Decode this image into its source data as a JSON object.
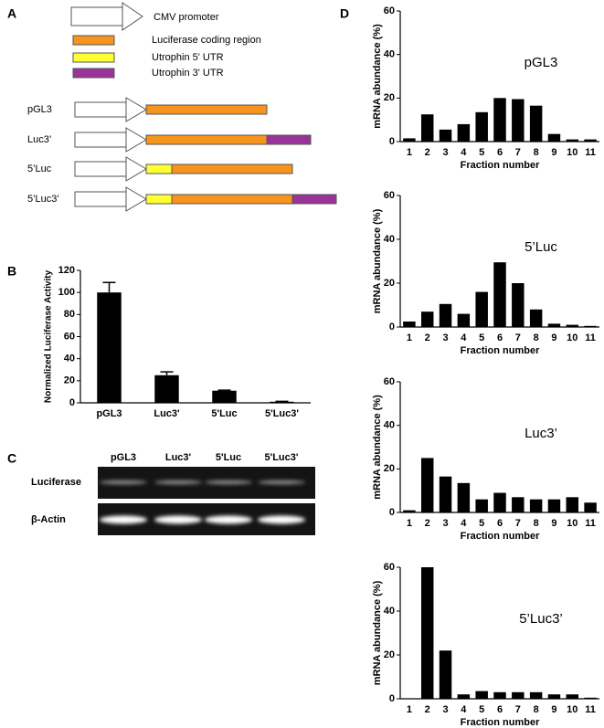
{
  "panel_labels": [
    "A",
    "B",
    "C",
    "D"
  ],
  "diagram": {
    "legend": [
      {
        "label": "CMV promoter",
        "color": "#ffffff"
      },
      {
        "label": "Luciferase coding region",
        "color": "#f7941d"
      },
      {
        "label": "Utrophin 5' UTR",
        "color": "#ffff33"
      },
      {
        "label": "Utrophin 3' UTR",
        "color": "#993399"
      }
    ],
    "constructs": [
      "pGL3",
      "Luc3’",
      "5’Luc",
      "5’Luc3’"
    ]
  },
  "gel": {
    "lanes": [
      "pGL3",
      "Luc3'",
      "5'Luc",
      "5'Luc3'"
    ],
    "rows": [
      "Luciferase",
      "β-Actin"
    ]
  },
  "chart_data": [
    {
      "type": "bar",
      "ylabel": "Normalized Luciferase Activity",
      "categories": [
        "pGL3",
        "Luc3'",
        "5'Luc",
        "5'Luc3'"
      ],
      "values": [
        100,
        25,
        11,
        1
      ],
      "errors": [
        9,
        3,
        0.5,
        0.3
      ],
      "color": "#000000",
      "ylim": [
        0,
        120
      ],
      "yticks": [
        0,
        20,
        40,
        60,
        80,
        100,
        120
      ]
    },
    {
      "type": "bar",
      "title": "pGL3",
      "ylabel": "mRNA abundance (%)",
      "xlabel": "Fraction number",
      "categories": [
        "1",
        "2",
        "3",
        "4",
        "5",
        "6",
        "7",
        "8",
        "9",
        "10",
        "11"
      ],
      "values": [
        1.5,
        12.5,
        5.5,
        8,
        13.5,
        20,
        19.5,
        16.5,
        3.5,
        1,
        1
      ],
      "color": "#000000",
      "ylim": [
        0,
        60
      ],
      "yticks": [
        0,
        20,
        40,
        60
      ]
    },
    {
      "type": "bar",
      "title": "5’Luc",
      "ylabel": "mRNA abundance (%)",
      "xlabel": "Fraction number",
      "categories": [
        "1",
        "2",
        "3",
        "4",
        "5",
        "6",
        "7",
        "8",
        "9",
        "10",
        "11"
      ],
      "values": [
        2.5,
        7,
        10.5,
        6,
        16,
        29.5,
        20,
        8,
        1.5,
        1,
        0.5
      ],
      "color": "#000000",
      "ylim": [
        0,
        60
      ],
      "yticks": [
        0,
        20,
        40,
        60
      ]
    },
    {
      "type": "bar",
      "title": "Luc3’",
      "ylabel": "mRNA abundance (%)",
      "xlabel": "Fraction number",
      "categories": [
        "1",
        "2",
        "3",
        "4",
        "5",
        "6",
        "7",
        "8",
        "9",
        "10",
        "11"
      ],
      "values": [
        1,
        25,
        16.5,
        13.5,
        6,
        9,
        7,
        6,
        6,
        7,
        4.5
      ],
      "color": "#000000",
      "ylim": [
        0,
        60
      ],
      "yticks": [
        0,
        20,
        40,
        60
      ]
    },
    {
      "type": "bar",
      "title": "5’Luc3’",
      "ylabel": "mRNA abundance (%)",
      "xlabel": "Fraction number",
      "categories": [
        "1",
        "2",
        "3",
        "4",
        "5",
        "6",
        "7",
        "8",
        "9",
        "10",
        "11"
      ],
      "values": [
        0,
        60,
        22,
        2,
        3.5,
        3,
        3,
        3,
        2,
        2,
        0.5
      ],
      "color": "#000000",
      "ylim": [
        0,
        60
      ],
      "yticks": [
        0,
        20,
        40,
        60
      ]
    }
  ]
}
